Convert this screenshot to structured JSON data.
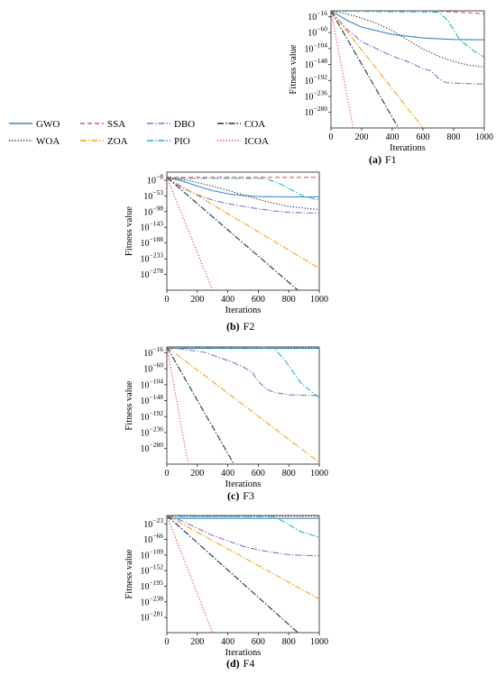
{
  "legend": {
    "items": [
      {
        "name": "GWO",
        "color": "#3a86c8",
        "dash": "solid"
      },
      {
        "name": "SSA",
        "color": "#e05a5a",
        "dash": "dash"
      },
      {
        "name": "DBO",
        "color": "#8e6fc1",
        "dash": "dashdot"
      },
      {
        "name": "COA",
        "color": "#1c2f4a",
        "dash": "dashdot"
      },
      {
        "name": "WOA",
        "color": "#222222",
        "dash": "dot"
      },
      {
        "name": "ZOA",
        "color": "#f2a516",
        "dash": "dashdot"
      },
      {
        "name": "PIO",
        "color": "#27b5c9",
        "dash": "dashdot"
      },
      {
        "name": "ICOA",
        "color": "#e63946",
        "dash": "dot"
      }
    ]
  },
  "chart_data": [
    {
      "type": "line",
      "caption_letter": "(a)",
      "caption_func": "F1",
      "xlabel": "Iterations",
      "ylabel": "Fitness value",
      "xlim": [
        0,
        1000
      ],
      "xticks": [
        "0",
        "200",
        "400",
        "600",
        "800",
        "1000"
      ],
      "yticks": [
        {
          "exp": -16,
          "label": "10",
          "sup": "−16"
        },
        {
          "exp": -60,
          "label": "10",
          "sup": "−60"
        },
        {
          "exp": -104,
          "label": "10",
          "sup": "−104"
        },
        {
          "exp": -148,
          "label": "10",
          "sup": "−148"
        },
        {
          "exp": -192,
          "label": "10",
          "sup": "−192"
        },
        {
          "exp": -236,
          "label": "10",
          "sup": "−236"
        },
        {
          "exp": -280,
          "label": "10",
          "sup": "−280"
        }
      ],
      "ylim_exp": [
        0,
        -323
      ],
      "scale": "log",
      "series": [
        {
          "name": "SSA",
          "points": [
            [
              0,
              0
            ],
            [
              300,
              0
            ],
            [
              600,
              0
            ],
            [
              800,
              -3
            ],
            [
              1000,
              -8
            ]
          ]
        },
        {
          "name": "GWO",
          "points": [
            [
              0,
              0
            ],
            [
              100,
              -25
            ],
            [
              200,
              -45
            ],
            [
              400,
              -65
            ],
            [
              600,
              -75
            ],
            [
              800,
              -79
            ],
            [
              1000,
              -80
            ]
          ]
        },
        {
          "name": "PIO",
          "points": [
            [
              0,
              0
            ],
            [
              100,
              -1
            ],
            [
              300,
              -2
            ],
            [
              500,
              -3
            ],
            [
              700,
              -4
            ],
            [
              760,
              -25
            ],
            [
              840,
              -80
            ],
            [
              930,
              -110
            ],
            [
              1000,
              -128
            ]
          ]
        },
        {
          "name": "WOA",
          "points": [
            [
              0,
              0
            ],
            [
              100,
              -8
            ],
            [
              200,
              -20
            ],
            [
              300,
              -35
            ],
            [
              400,
              -55
            ],
            [
              500,
              -80
            ],
            [
              600,
              -105
            ],
            [
              700,
              -125
            ],
            [
              800,
              -140
            ],
            [
              900,
              -150
            ],
            [
              1000,
              -155
            ]
          ]
        },
        {
          "name": "DBO",
          "points": [
            [
              0,
              0
            ],
            [
              100,
              -50
            ],
            [
              200,
              -85
            ],
            [
              300,
              -105
            ],
            [
              400,
              -125
            ],
            [
              500,
              -140
            ],
            [
              600,
              -160
            ],
            [
              650,
              -165
            ],
            [
              700,
              -185
            ],
            [
              750,
              -198
            ],
            [
              850,
              -200
            ],
            [
              1000,
              -202
            ]
          ]
        },
        {
          "name": "ZOA",
          "points": [
            [
              0,
              0
            ],
            [
              600,
              -323
            ]
          ]
        },
        {
          "name": "COA",
          "points": [
            [
              0,
              0
            ],
            [
              440,
              -323
            ]
          ]
        },
        {
          "name": "ICOA",
          "points": [
            [
              0,
              0
            ],
            [
              145,
              -323
            ]
          ]
        }
      ]
    },
    {
      "type": "line",
      "caption_letter": "(b)",
      "caption_func": "F2",
      "xlabel": "Iterations",
      "ylabel": "Fitness value",
      "xlim": [
        0,
        1000
      ],
      "xticks": [
        "0",
        "200",
        "400",
        "600",
        "800",
        "1000"
      ],
      "yticks": [
        {
          "exp": -8,
          "label": "10",
          "sup": "−8"
        },
        {
          "exp": -53,
          "label": "10",
          "sup": "−53"
        },
        {
          "exp": -98,
          "label": "10",
          "sup": "−98"
        },
        {
          "exp": -143,
          "label": "10",
          "sup": "−143"
        },
        {
          "exp": -188,
          "label": "10",
          "sup": "−188"
        },
        {
          "exp": -233,
          "label": "10",
          "sup": "−233"
        },
        {
          "exp": -278,
          "label": "10",
          "sup": "−278"
        }
      ],
      "ylim_exp": [
        15,
        -323
      ],
      "scale": "log",
      "series": [
        {
          "name": "SSA",
          "points": [
            [
              0,
              0
            ],
            [
              600,
              0
            ],
            [
              1000,
              0
            ]
          ]
        },
        {
          "name": "GWO",
          "points": [
            [
              0,
              0
            ],
            [
              100,
              -10
            ],
            [
              200,
              -25
            ],
            [
              300,
              -38
            ],
            [
              400,
              -47
            ],
            [
              500,
              -52
            ],
            [
              600,
              -55
            ],
            [
              800,
              -56
            ],
            [
              1000,
              -56
            ]
          ]
        },
        {
          "name": "PIO",
          "points": [
            [
              0,
              -3
            ],
            [
              650,
              -3
            ],
            [
              750,
              -20
            ],
            [
              900,
              -55
            ],
            [
              1000,
              -65
            ]
          ]
        },
        {
          "name": "WOA",
          "points": [
            [
              0,
              0
            ],
            [
              100,
              -5
            ],
            [
              200,
              -15
            ],
            [
              300,
              -25
            ],
            [
              400,
              -37
            ],
            [
              500,
              -50
            ],
            [
              600,
              -63
            ],
            [
              700,
              -74
            ],
            [
              800,
              -83
            ],
            [
              900,
              -88
            ],
            [
              1000,
              -92
            ]
          ]
        },
        {
          "name": "DBO",
          "points": [
            [
              0,
              0
            ],
            [
              100,
              -30
            ],
            [
              200,
              -50
            ],
            [
              300,
              -65
            ],
            [
              400,
              -75
            ],
            [
              500,
              -83
            ],
            [
              600,
              -90
            ],
            [
              700,
              -96
            ],
            [
              800,
              -100
            ],
            [
              1000,
              -103
            ]
          ]
        },
        {
          "name": "ZOA",
          "points": [
            [
              0,
              0
            ],
            [
              1000,
              -260
            ]
          ]
        },
        {
          "name": "COA",
          "points": [
            [
              0,
              0
            ],
            [
              860,
              -323
            ]
          ]
        },
        {
          "name": "ICOA",
          "points": [
            [
              0,
              0
            ],
            [
              300,
              -323
            ]
          ]
        }
      ]
    },
    {
      "type": "line",
      "caption_letter": "(c)",
      "caption_func": "F3",
      "xlabel": "Iterations",
      "ylabel": "Fitness value",
      "xlim": [
        0,
        1000
      ],
      "xticks": [
        "0",
        "200",
        "400",
        "600",
        "800",
        "1000"
      ],
      "yticks": [
        {
          "exp": -16,
          "label": "10",
          "sup": "−16"
        },
        {
          "exp": -60,
          "label": "10",
          "sup": "−60"
        },
        {
          "exp": -104,
          "label": "10",
          "sup": "−104"
        },
        {
          "exp": -148,
          "label": "10",
          "sup": "−148"
        },
        {
          "exp": -192,
          "label": "10",
          "sup": "−192"
        },
        {
          "exp": -236,
          "label": "10",
          "sup": "−236"
        },
        {
          "exp": -280,
          "label": "10",
          "sup": "−280"
        }
      ],
      "ylim_exp": [
        0,
        -323
      ],
      "scale": "log",
      "series": [
        {
          "name": "SSA",
          "points": [
            [
              0,
              0
            ],
            [
              1000,
              0
            ]
          ]
        },
        {
          "name": "WOA",
          "points": [
            [
              0,
              -2
            ],
            [
              1000,
              -2
            ]
          ]
        },
        {
          "name": "GWO",
          "points": [
            [
              0,
              -4
            ],
            [
              1000,
              -4
            ]
          ]
        },
        {
          "name": "PIO",
          "points": [
            [
              0,
              -1
            ],
            [
              700,
              -1
            ],
            [
              780,
              -40
            ],
            [
              880,
              -100
            ],
            [
              1000,
              -140
            ]
          ]
        },
        {
          "name": "DBO",
          "points": [
            [
              0,
              0
            ],
            [
              250,
              -15
            ],
            [
              350,
              -30
            ],
            [
              420,
              -40
            ],
            [
              500,
              -55
            ],
            [
              560,
              -70
            ],
            [
              600,
              -95
            ],
            [
              650,
              -115
            ],
            [
              700,
              -125
            ],
            [
              800,
              -132
            ],
            [
              1000,
              -134
            ]
          ]
        },
        {
          "name": "ZOA",
          "points": [
            [
              0,
              0
            ],
            [
              1000,
              -318
            ]
          ]
        },
        {
          "name": "COA",
          "points": [
            [
              0,
              0
            ],
            [
              440,
              -323
            ]
          ]
        },
        {
          "name": "ICOA",
          "points": [
            [
              0,
              0
            ],
            [
              140,
              -323
            ]
          ]
        }
      ]
    },
    {
      "type": "line",
      "caption_letter": "(d)",
      "caption_func": "F4",
      "xlabel": "Iterations",
      "ylabel": "Fitness value",
      "xlim": [
        0,
        1000
      ],
      "xticks": [
        "0",
        "200",
        "400",
        "600",
        "800",
        "1000"
      ],
      "yticks": [
        {
          "exp": -23,
          "label": "10",
          "sup": "−23"
        },
        {
          "exp": -66,
          "label": "10",
          "sup": "−66"
        },
        {
          "exp": -109,
          "label": "10",
          "sup": "−109"
        },
        {
          "exp": -152,
          "label": "10",
          "sup": "−152"
        },
        {
          "exp": -195,
          "label": "10",
          "sup": "−195"
        },
        {
          "exp": -238,
          "label": "10",
          "sup": "−238"
        },
        {
          "exp": -281,
          "label": "10",
          "sup": "−281"
        }
      ],
      "ylim_exp": [
        0,
        -323
      ],
      "scale": "log",
      "series": [
        {
          "name": "SSA",
          "points": [
            [
              0,
              0
            ],
            [
              1000,
              0
            ]
          ]
        },
        {
          "name": "GWO",
          "points": [
            [
              0,
              -8
            ],
            [
              1000,
              -8
            ]
          ]
        },
        {
          "name": "WOA",
          "points": [
            [
              0,
              -2
            ],
            [
              1000,
              -2
            ]
          ]
        },
        {
          "name": "PIO",
          "points": [
            [
              0,
              -3
            ],
            [
              700,
              -3
            ],
            [
              780,
              -20
            ],
            [
              880,
              -45
            ],
            [
              1000,
              -60
            ]
          ]
        },
        {
          "name": "DBO",
          "points": [
            [
              0,
              0
            ],
            [
              100,
              -15
            ],
            [
              200,
              -35
            ],
            [
              300,
              -55
            ],
            [
              400,
              -70
            ],
            [
              500,
              -85
            ],
            [
              600,
              -95
            ],
            [
              700,
              -102
            ],
            [
              800,
              -108
            ],
            [
              900,
              -110
            ],
            [
              1000,
              -111
            ]
          ]
        },
        {
          "name": "ZOA",
          "points": [
            [
              0,
              0
            ],
            [
              1000,
              -230
            ]
          ]
        },
        {
          "name": "COA",
          "points": [
            [
              0,
              0
            ],
            [
              860,
              -323
            ]
          ]
        },
        {
          "name": "ICOA",
          "points": [
            [
              0,
              0
            ],
            [
              300,
              -323
            ]
          ]
        }
      ]
    }
  ]
}
